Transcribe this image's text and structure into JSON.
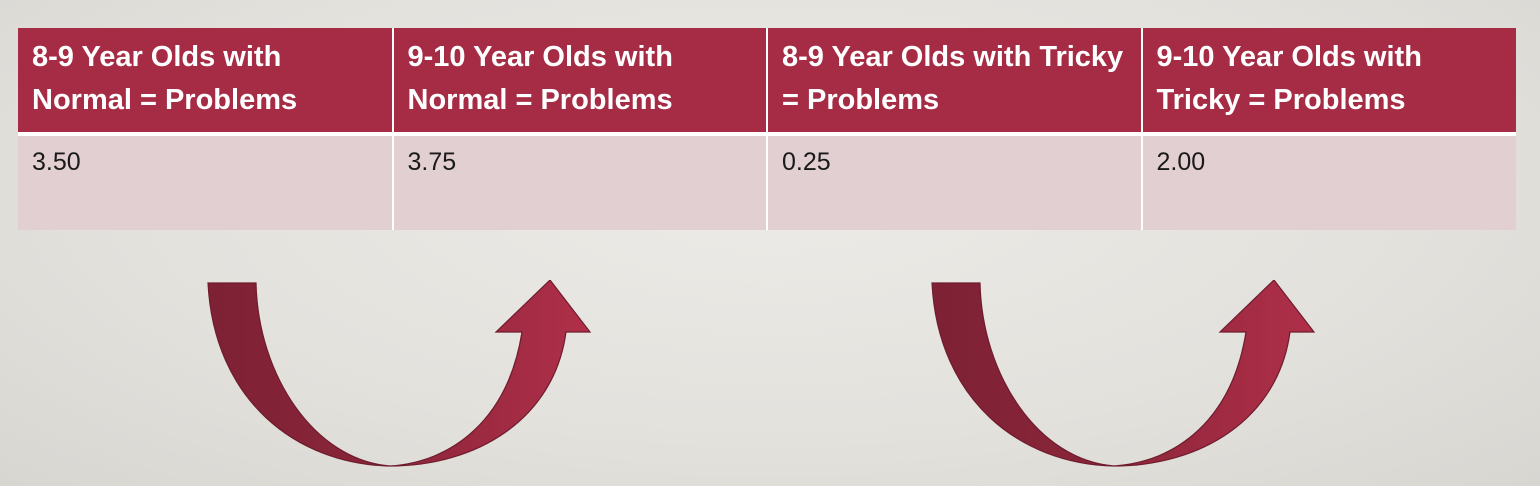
{
  "table": {
    "headers": [
      "8-9 Year Olds with Normal = Problems",
      "9-10 Year Olds with Normal = Problems",
      "8-9 Year Olds with Tricky = Problems",
      "9-10 Year Olds with Tricky = Problems"
    ],
    "rows": [
      [
        "3.50",
        "3.75",
        "0.25",
        "2.00"
      ]
    ]
  },
  "colors": {
    "header_bg": "#a52c44",
    "cell_bg": "#e2cfd1",
    "arrow_dark": "#86233a",
    "arrow_light": "#ad2e47"
  },
  "icons": [
    "curved-up-arrow-icon",
    "curved-up-arrow-icon"
  ]
}
